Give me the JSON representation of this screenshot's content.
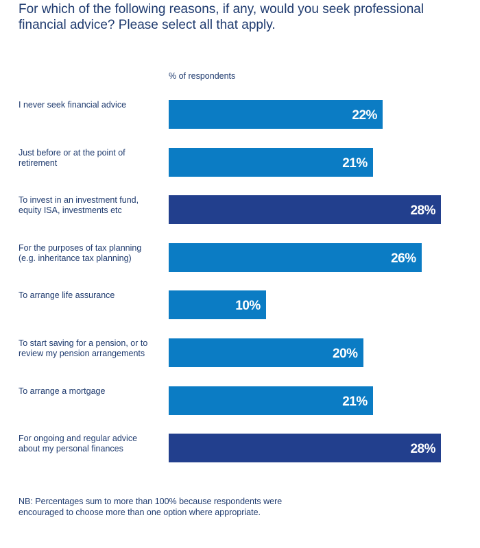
{
  "title": "For which of the following reasons, if any, would you seek professional financial advice? Please select all that apply.",
  "footnote": "NB: Percentages sum to more than 100% because respondents were encouraged to choose more than one option where appropriate.",
  "chart_data": {
    "type": "bar",
    "orientation": "horizontal",
    "unit_label": "% of respondents",
    "categories": [
      "I never seek financial advice",
      "Just before or at the point of retirement",
      "To invest in an investment fund, equity ISA, investments etc",
      "For the purposes of tax planning (e.g. inheritance tax planning)",
      "To arrange life assurance",
      "To start saving for a pension, or to review my pension arrangements",
      "To arrange a mortgage",
      "For ongoing and regular advice about my personal finances"
    ],
    "values": [
      22,
      21,
      28,
      26,
      10,
      20,
      21,
      28
    ],
    "value_labels": [
      "22%",
      "21%",
      "28%",
      "26%",
      "10%",
      "20%",
      "21%",
      "28%"
    ],
    "highlighted": [
      false,
      false,
      true,
      false,
      false,
      false,
      false,
      true
    ],
    "colors": {
      "bar": "#0b7cc4",
      "highlight": "#223f8d"
    },
    "xlim": [
      0,
      28
    ],
    "grid": false
  }
}
